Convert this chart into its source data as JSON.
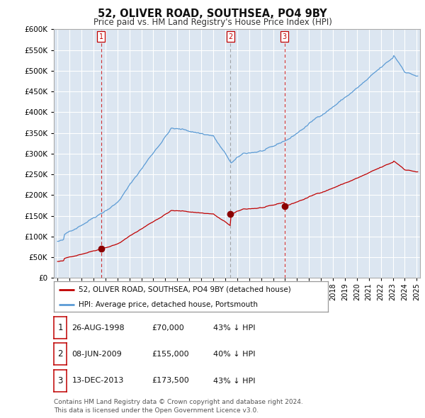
{
  "title": "52, OLIVER ROAD, SOUTHSEA, PO4 9BY",
  "subtitle": "Price paid vs. HM Land Registry's House Price Index (HPI)",
  "ylim": [
    0,
    600000
  ],
  "yticks": [
    0,
    50000,
    100000,
    150000,
    200000,
    250000,
    300000,
    350000,
    400000,
    450000,
    500000,
    550000,
    600000
  ],
  "ytick_labels": [
    "£0",
    "£50K",
    "£100K",
    "£150K",
    "£200K",
    "£250K",
    "£300K",
    "£350K",
    "£400K",
    "£450K",
    "£500K",
    "£550K",
    "£600K"
  ],
  "hpi_color": "#5b9bd5",
  "price_color": "#c00000",
  "marker_color": "#8b0000",
  "sale_dates": [
    1998.648,
    2009.438,
    2013.956
  ],
  "sale_prices": [
    70000,
    155000,
    173500
  ],
  "sale_labels": [
    "1",
    "2",
    "3"
  ],
  "vline_colors": [
    "#cc0000",
    "#888888",
    "#cc0000"
  ],
  "legend_line1": "52, OLIVER ROAD, SOUTHSEA, PO4 9BY (detached house)",
  "legend_line2": "HPI: Average price, detached house, Portsmouth",
  "table_entries": [
    [
      "1",
      "26-AUG-1998",
      "£70,000",
      "43% ↓ HPI"
    ],
    [
      "2",
      "08-JUN-2009",
      "£155,000",
      "40% ↓ HPI"
    ],
    [
      "3",
      "13-DEC-2013",
      "£173,500",
      "43% ↓ HPI"
    ]
  ],
  "footer": "Contains HM Land Registry data © Crown copyright and database right 2024.\nThis data is licensed under the Open Government Licence v3.0.",
  "bg_color": "#ffffff",
  "chart_bg": "#dce6f1",
  "grid_color": "#ffffff",
  "border_color": "#aaaaaa"
}
